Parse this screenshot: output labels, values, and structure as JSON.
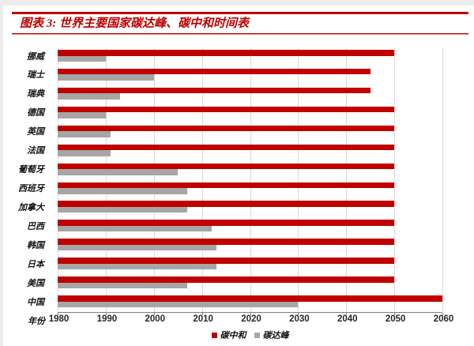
{
  "page": {
    "title": "图表 3: 世界主要国家碳达峰、碳中和时间表"
  },
  "chart_data": {
    "type": "bar",
    "orientation": "horizontal",
    "title": "世界主要国家碳达峰、碳中和时间表",
    "categories": [
      "挪威",
      "瑞士",
      "瑞典",
      "德国",
      "英国",
      "法国",
      "葡萄牙",
      "西班牙",
      "加拿大",
      "巴西",
      "韩国",
      "日本",
      "美国",
      "中国"
    ],
    "series": [
      {
        "name": "碳中和",
        "color": "#c00000",
        "values": [
          2050,
          2045,
          2045,
          2050,
          2050,
          2050,
          2050,
          2050,
          2050,
          2050,
          2050,
          2050,
          2050,
          2060
        ]
      },
      {
        "name": "碳达峰",
        "color": "#a6a6a6",
        "values": [
          1990,
          2000,
          1993,
          1990,
          1991,
          1991,
          2005,
          2007,
          2007,
          2012,
          2013,
          2013,
          2007,
          2030
        ]
      }
    ],
    "x_axis": {
      "label": "年份",
      "min": 1980,
      "max": 2060,
      "ticks": [
        1980,
        1990,
        2000,
        2010,
        2020,
        2030,
        2040,
        2050,
        2060
      ]
    },
    "legend": {
      "position": "bottom",
      "items": [
        "碳中和",
        "碳达峰"
      ]
    },
    "grid": "vertical",
    "colors": {
      "grid": "#d9d9d9",
      "axis": "#808080",
      "tick_label": "#262626",
      "title": "#c00000"
    }
  }
}
